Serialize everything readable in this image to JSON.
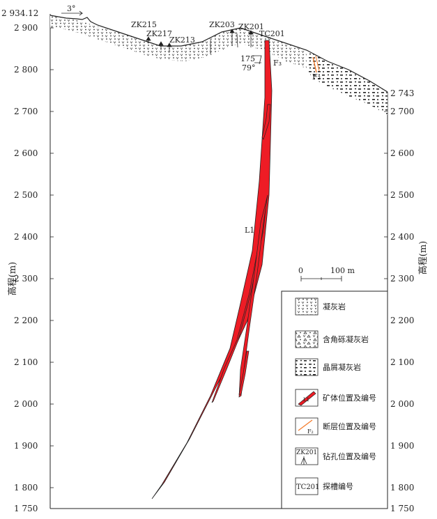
{
  "axis": {
    "left_ticks": [
      "2 900",
      "2 800",
      "2 700",
      "2 600",
      "2 500",
      "2 400",
      "2 300",
      "2 200",
      "2 100",
      "2 000",
      "1 900",
      "1 800",
      "1 750"
    ],
    "right_ticks": [
      "2 700",
      "2 600",
      "2 500",
      "2 400",
      "2 300",
      "2 200",
      "2 100",
      "2 000",
      "1 900",
      "1 800",
      "1 750"
    ],
    "left_top_value": "2 934.12",
    "right_top_value": "2 743",
    "ylabel_left": "高程(m)",
    "ylabel_right": "高程(m)"
  },
  "annotations": {
    "dip_top": "3°",
    "dip_angle": "79°",
    "dip_azimuth": "175",
    "orebody": "L1",
    "fault_f3": "F₃",
    "fault_f2": "F₂"
  },
  "boreholes": [
    {
      "id": "ZK215"
    },
    {
      "id": "ZK217"
    },
    {
      "id": "ZK213"
    },
    {
      "id": "ZK203"
    },
    {
      "id": "ZK201"
    }
  ],
  "trench": "TC201",
  "scale": {
    "zero": "0",
    "label": "100 m"
  },
  "legend": [
    {
      "key": "tuff",
      "label": "凝灰岩"
    },
    {
      "key": "breccia-tuff",
      "label": "含角砾凝灰岩"
    },
    {
      "key": "crystal-tuff",
      "label": "晶屑凝灰岩"
    },
    {
      "key": "orebody",
      "label": "矿体位置及编号",
      "symbol_text": "L1"
    },
    {
      "key": "fault",
      "label": "断层位置及编号",
      "symbol_text": "F₂"
    },
    {
      "key": "borehole",
      "label": "钻孔位置及编号",
      "symbol_text": "ZK201"
    },
    {
      "key": "trench",
      "label": "探槽编号",
      "symbol_text": "TC201"
    }
  ],
  "colors": {
    "ore": "#ee1c25",
    "fault": "#f47b2a"
  }
}
